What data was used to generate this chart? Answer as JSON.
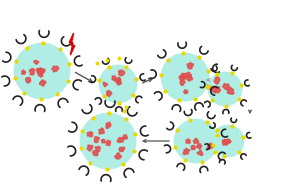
{
  "bg_color": "#ffffff",
  "droplet_color": "#b0ede5",
  "droplet_edge": "#90d0c8",
  "arm_color": "#222222",
  "yellow_color": "#e8d800",
  "red_color": "#e05050",
  "arrow_color": "#555555",
  "lightning_red": "#dd0000",
  "double_arrow_color": "#999999",
  "figsize": [
    2.86,
    1.89
  ],
  "dpi": 100,
  "positions": {
    "d1": [
      42,
      118,
      28
    ],
    "d2": [
      118,
      105,
      19
    ],
    "d3": [
      185,
      112,
      24
    ],
    "d4": [
      225,
      100,
      17
    ],
    "d5": [
      108,
      48,
      28
    ],
    "d6a": [
      196,
      48,
      22
    ],
    "d6b": [
      228,
      48,
      16
    ]
  }
}
